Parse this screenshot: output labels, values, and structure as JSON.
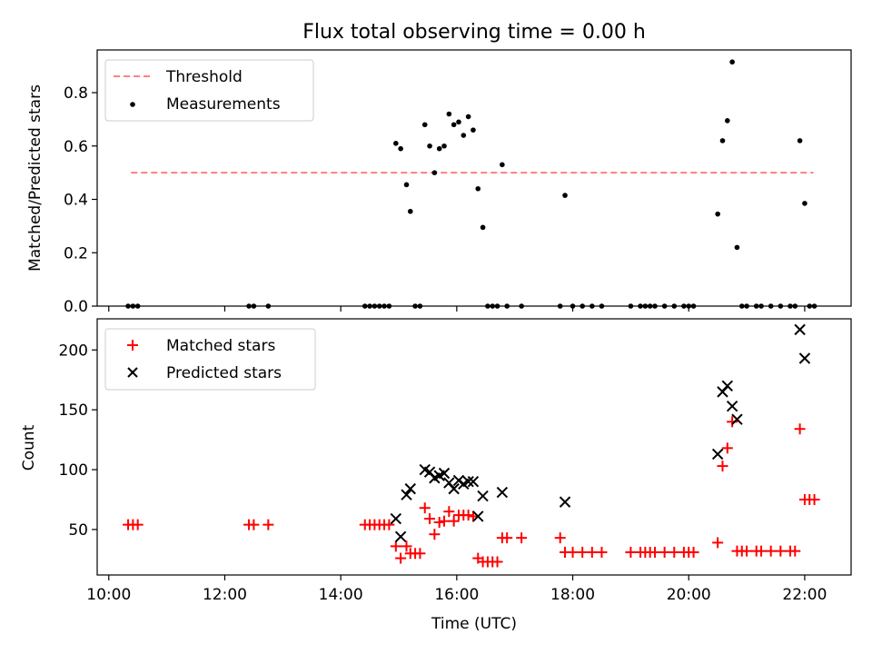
{
  "chart_data": [
    {
      "type": "scatter",
      "title": "Flux total observing time = 0.00 h",
      "xlabel": "",
      "ylabel": "Matched/Predicted stars",
      "xlim": [
        "09:48",
        "22:48"
      ],
      "ylim": [
        0,
        0.96
      ],
      "yticks": [
        "0.0",
        "0.2",
        "0.4",
        "0.6",
        "0.8"
      ],
      "grid": false,
      "legend_position": "upper-left",
      "threshold": {
        "name": "Threshold",
        "value": 0.5,
        "x_start": "10:23",
        "x_end": "22:09",
        "color": "#ff7070"
      },
      "series": [
        {
          "name": "Measurements",
          "color": "#000000",
          "points": [
            [
              "10:20",
              0
            ],
            [
              "10:25",
              0
            ],
            [
              "10:30",
              0
            ],
            [
              "12:25",
              0
            ],
            [
              "12:30",
              0
            ],
            [
              "12:45",
              0
            ],
            [
              "14:25",
              0
            ],
            [
              "14:30",
              0
            ],
            [
              "14:35",
              0
            ],
            [
              "14:40",
              0
            ],
            [
              "14:45",
              0
            ],
            [
              "14:50",
              0
            ],
            [
              "14:57",
              0.61
            ],
            [
              "15:02",
              0.59
            ],
            [
              "15:08",
              0.455
            ],
            [
              "15:12",
              0.355
            ],
            [
              "15:17",
              0
            ],
            [
              "15:22",
              0
            ],
            [
              "15:27",
              0.68
            ],
            [
              "15:32",
              0.6
            ],
            [
              "15:37",
              0.5
            ],
            [
              "15:42",
              0.59
            ],
            [
              "15:47",
              0.6
            ],
            [
              "15:52",
              0.72
            ],
            [
              "15:57",
              0.68
            ],
            [
              "16:02",
              0.69
            ],
            [
              "16:07",
              0.64
            ],
            [
              "16:12",
              0.71
            ],
            [
              "16:17",
              0.66
            ],
            [
              "16:22",
              0.44
            ],
            [
              "16:27",
              0.295
            ],
            [
              "16:32",
              0
            ],
            [
              "16:37",
              0
            ],
            [
              "16:42",
              0
            ],
            [
              "16:47",
              0.53
            ],
            [
              "16:52",
              0
            ],
            [
              "17:07",
              0
            ],
            [
              "17:47",
              0
            ],
            [
              "17:52",
              0.415
            ],
            [
              "18:00",
              0
            ],
            [
              "18:10",
              0
            ],
            [
              "18:20",
              0
            ],
            [
              "18:30",
              0
            ],
            [
              "19:00",
              0
            ],
            [
              "19:10",
              0
            ],
            [
              "19:15",
              0
            ],
            [
              "19:20",
              0
            ],
            [
              "19:25",
              0
            ],
            [
              "19:35",
              0
            ],
            [
              "19:45",
              0
            ],
            [
              "19:55",
              0
            ],
            [
              "20:00",
              0
            ],
            [
              "20:05",
              0
            ],
            [
              "20:30",
              0.345
            ],
            [
              "20:35",
              0.62
            ],
            [
              "20:40",
              0.695
            ],
            [
              "20:45",
              0.915
            ],
            [
              "20:50",
              0.22
            ],
            [
              "20:55",
              0
            ],
            [
              "21:00",
              0
            ],
            [
              "21:10",
              0
            ],
            [
              "21:15",
              0
            ],
            [
              "21:25",
              0
            ],
            [
              "21:35",
              0
            ],
            [
              "21:45",
              0
            ],
            [
              "21:50",
              0
            ],
            [
              "21:55",
              0.62
            ],
            [
              "22:00",
              0.385
            ],
            [
              "22:05",
              0
            ],
            [
              "22:10",
              0
            ]
          ]
        }
      ]
    },
    {
      "type": "scatter",
      "title": "",
      "xlabel": "Time (UTC)",
      "ylabel": "Count",
      "xlim": [
        "09:48",
        "22:48"
      ],
      "ylim": [
        12,
        226
      ],
      "yticks": [
        "50",
        "100",
        "150",
        "200"
      ],
      "xticks": [
        "10:00",
        "12:00",
        "14:00",
        "16:00",
        "18:00",
        "20:00",
        "22:00"
      ],
      "grid": false,
      "legend_position": "upper-left",
      "series": [
        {
          "name": "Matched stars",
          "marker": "plus",
          "color": "#ff0000",
          "points": [
            [
              "10:20",
              54
            ],
            [
              "10:25",
              54
            ],
            [
              "10:30",
              54
            ],
            [
              "12:25",
              54
            ],
            [
              "12:30",
              54
            ],
            [
              "12:45",
              54
            ],
            [
              "14:25",
              54
            ],
            [
              "14:30",
              54
            ],
            [
              "14:35",
              54
            ],
            [
              "14:40",
              54
            ],
            [
              "14:45",
              54
            ],
            [
              "14:50",
              54
            ],
            [
              "14:57",
              36
            ],
            [
              "15:02",
              26
            ],
            [
              "15:08",
              36
            ],
            [
              "15:12",
              30
            ],
            [
              "15:17",
              30
            ],
            [
              "15:22",
              30
            ],
            [
              "15:27",
              68
            ],
            [
              "15:32",
              59
            ],
            [
              "15:37",
              46
            ],
            [
              "15:42",
              56
            ],
            [
              "15:47",
              57
            ],
            [
              "15:52",
              65
            ],
            [
              "15:57",
              57
            ],
            [
              "16:02",
              62
            ],
            [
              "16:07",
              62
            ],
            [
              "16:12",
              62
            ],
            [
              "16:17",
              61
            ],
            [
              "16:22",
              26
            ],
            [
              "16:27",
              23
            ],
            [
              "16:32",
              23
            ],
            [
              "16:37",
              23
            ],
            [
              "16:42",
              23
            ],
            [
              "16:47",
              43
            ],
            [
              "16:52",
              43
            ],
            [
              "17:07",
              43
            ],
            [
              "17:47",
              43
            ],
            [
              "17:52",
              31
            ],
            [
              "18:00",
              31
            ],
            [
              "18:10",
              31
            ],
            [
              "18:20",
              31
            ],
            [
              "18:30",
              31
            ],
            [
              "19:00",
              31
            ],
            [
              "19:10",
              31
            ],
            [
              "19:15",
              31
            ],
            [
              "19:20",
              31
            ],
            [
              "19:25",
              31
            ],
            [
              "19:35",
              31
            ],
            [
              "19:45",
              31
            ],
            [
              "19:55",
              31
            ],
            [
              "20:00",
              31
            ],
            [
              "20:05",
              31
            ],
            [
              "20:30",
              39
            ],
            [
              "20:35",
              103
            ],
            [
              "20:40",
              118
            ],
            [
              "20:45",
              140
            ],
            [
              "20:50",
              32
            ],
            [
              "20:55",
              32
            ],
            [
              "21:00",
              32
            ],
            [
              "21:10",
              32
            ],
            [
              "21:15",
              32
            ],
            [
              "21:25",
              32
            ],
            [
              "21:35",
              32
            ],
            [
              "21:45",
              32
            ],
            [
              "21:50",
              32
            ],
            [
              "21:55",
              134
            ],
            [
              "22:00",
              75
            ],
            [
              "22:05",
              75
            ],
            [
              "22:10",
              75
            ]
          ]
        },
        {
          "name": "Predicted stars",
          "marker": "x",
          "color": "#000000",
          "points": [
            [
              "14:57",
              59
            ],
            [
              "15:02",
              44
            ],
            [
              "15:08",
              79
            ],
            [
              "15:12",
              84
            ],
            [
              "15:27",
              100
            ],
            [
              "15:32",
              98
            ],
            [
              "15:37",
              93
            ],
            [
              "15:42",
              95
            ],
            [
              "15:47",
              97
            ],
            [
              "15:52",
              89
            ],
            [
              "15:57",
              84
            ],
            [
              "16:02",
              91
            ],
            [
              "16:07",
              88
            ],
            [
              "16:12",
              90
            ],
            [
              "16:17",
              90
            ],
            [
              "16:22",
              61
            ],
            [
              "16:27",
              78
            ],
            [
              "16:47",
              81
            ],
            [
              "17:52",
              73
            ],
            [
              "20:30",
              113
            ],
            [
              "20:35",
              165
            ],
            [
              "20:40",
              170
            ],
            [
              "20:45",
              153
            ],
            [
              "20:50",
              142
            ],
            [
              "21:55",
              217
            ],
            [
              "22:00",
              193
            ]
          ]
        }
      ]
    }
  ]
}
